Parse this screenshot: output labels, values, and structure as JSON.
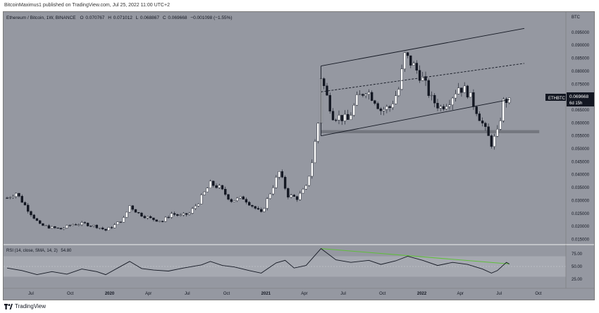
{
  "header": {
    "published": "BitcoinMaximus1 published on TradingView.com, Jul 25, 2022 11:00 UTC+2"
  },
  "legend": {
    "symbol": "Ethereum / Bitcoin, 1W, BINANCE",
    "o_label": "O",
    "o_value": "0.070767",
    "h_label": "H",
    "h_value": "0.071012",
    "l_label": "L",
    "l_value": "0.068867",
    "c_label": "C",
    "c_value": "0.069668",
    "change": "−0.001098 (−1.55%)"
  },
  "price_axis": {
    "currency": "BTC",
    "ticks": [
      "0.095000",
      "0.090000",
      "0.085000",
      "0.080000",
      "0.075000",
      "0.070000",
      "0.065000",
      "0.060000",
      "0.055000",
      "0.050000",
      "0.045000",
      "0.040000",
      "0.035000",
      "0.030000",
      "0.025000",
      "0.020000",
      "0.015000"
    ],
    "ticker_label": "ETHBTC",
    "ticker_value": "0.069668",
    "ticker_countdown": "6d 15h"
  },
  "rsi": {
    "label": "RSI (14, close, SMA, 14, 2)",
    "value": "54.80",
    "ticks": [
      "75.00",
      "50.00",
      "25.00"
    ]
  },
  "time_axis": {
    "labels": [
      "Jul",
      "Oct",
      "2020",
      "Apr",
      "Jul",
      "Oct",
      "2021",
      "Apr",
      "Jul",
      "Oct",
      "2022",
      "Apr",
      "Jul",
      "Oct"
    ]
  },
  "footer": {
    "brand": "TradingView"
  },
  "colors": {
    "background": "#9598a1",
    "bull": "#ffffff",
    "bear": "#131722",
    "support_zone": "#6f7179",
    "rsi_trend": "#5fbf3a"
  },
  "chart_data": {
    "type": "candlestick",
    "title": "Ethereum / Bitcoin, 1W, BINANCE",
    "y_unit": "BTC",
    "ylim": [
      0.0135,
      0.0985
    ],
    "x_range": [
      "2019-05",
      "2022-12"
    ],
    "close_path": [
      [
        "2019-05-06",
        0.031
      ],
      [
        "2019-05-27",
        0.033
      ],
      [
        "2019-06-24",
        0.0265
      ],
      [
        "2019-07-22",
        0.0205
      ],
      [
        "2019-08-19",
        0.0195
      ],
      [
        "2019-09-09",
        0.019
      ],
      [
        "2019-10-07",
        0.0208
      ],
      [
        "2019-11-04",
        0.021
      ],
      [
        "2019-12-02",
        0.02
      ],
      [
        "2019-12-23",
        0.0185
      ],
      [
        "2020-01-13",
        0.0205
      ],
      [
        "2020-02-03",
        0.023
      ],
      [
        "2020-02-17",
        0.028
      ],
      [
        "2020-03-09",
        0.025
      ],
      [
        "2020-04-06",
        0.023
      ],
      [
        "2020-05-04",
        0.022
      ],
      [
        "2020-05-25",
        0.025
      ],
      [
        "2020-06-15",
        0.024
      ],
      [
        "2020-07-06",
        0.025
      ],
      [
        "2020-07-27",
        0.0295
      ],
      [
        "2020-08-24",
        0.0365
      ],
      [
        "2020-09-14",
        0.035
      ],
      [
        "2020-10-12",
        0.03
      ],
      [
        "2020-11-09",
        0.031
      ],
      [
        "2020-11-30",
        0.028
      ],
      [
        "2020-12-21",
        0.025
      ],
      [
        "2021-01-11",
        0.033
      ],
      [
        "2021-02-01",
        0.041
      ],
      [
        "2021-02-22",
        0.032
      ],
      [
        "2021-03-15",
        0.031
      ],
      [
        "2021-04-05",
        0.035
      ],
      [
        "2021-04-19",
        0.045
      ],
      [
        "2021-05-03",
        0.06
      ],
      [
        "2021-05-10",
        0.078
      ],
      [
        "2021-05-24",
        0.07
      ],
      [
        "2021-06-07",
        0.063
      ],
      [
        "2021-06-28",
        0.062
      ],
      [
        "2021-07-12",
        0.061
      ],
      [
        "2021-08-02",
        0.069
      ],
      [
        "2021-08-23",
        0.073
      ],
      [
        "2021-09-13",
        0.069
      ],
      [
        "2021-09-27",
        0.065
      ],
      [
        "2021-10-18",
        0.066
      ],
      [
        "2021-11-08",
        0.073
      ],
      [
        "2021-11-22",
        0.086
      ],
      [
        "2021-12-13",
        0.082
      ],
      [
        "2022-01-03",
        0.077
      ],
      [
        "2022-01-24",
        0.069
      ],
      [
        "2022-02-14",
        0.066
      ],
      [
        "2022-03-07",
        0.069
      ],
      [
        "2022-03-28",
        0.074
      ],
      [
        "2022-04-18",
        0.072
      ],
      [
        "2022-05-09",
        0.065
      ],
      [
        "2022-05-30",
        0.057
      ],
      [
        "2022-06-13",
        0.052
      ],
      [
        "2022-06-27",
        0.056
      ],
      [
        "2022-07-11",
        0.068
      ],
      [
        "2022-07-25",
        0.069668
      ]
    ],
    "channel": {
      "upper": [
        [
          "2021-05-10",
          0.082
        ],
        [
          "2022-08-29",
          0.0965
        ]
      ],
      "middle_dashed": [
        [
          "2021-05-10",
          0.072
        ],
        [
          "2022-08-29",
          0.083
        ]
      ],
      "lower": [
        [
          "2021-05-10",
          0.055
        ],
        [
          "2022-07-25",
          0.069
        ]
      ]
    },
    "support_zone": {
      "from": "2021-05-10",
      "to": "2022-10-03",
      "low": 0.056,
      "high": 0.0572
    },
    "rsi_ylim": [
      10,
      90
    ],
    "rsi_upper_band": 70,
    "rsi_lower_band": 30,
    "rsi_mid": 50,
    "rsi_path": [
      [
        "2019-05-06",
        47
      ],
      [
        "2019-06-10",
        42
      ],
      [
        "2019-07-15",
        34
      ],
      [
        "2019-08-19",
        40
      ],
      [
        "2019-09-23",
        35
      ],
      [
        "2019-10-28",
        45
      ],
      [
        "2019-12-02",
        40
      ],
      [
        "2019-12-23",
        34
      ],
      [
        "2020-01-20",
        47
      ],
      [
        "2020-02-17",
        60
      ],
      [
        "2020-03-16",
        46
      ],
      [
        "2020-04-13",
        43
      ],
      [
        "2020-05-18",
        41
      ],
      [
        "2020-06-22",
        47
      ],
      [
        "2020-08-03",
        53
      ],
      [
        "2020-08-24",
        60
      ],
      [
        "2020-09-21",
        52
      ],
      [
        "2020-10-19",
        49
      ],
      [
        "2020-11-23",
        42
      ],
      [
        "2020-12-21",
        37
      ],
      [
        "2021-01-25",
        57
      ],
      [
        "2021-02-15",
        62
      ],
      [
        "2021-03-08",
        47
      ],
      [
        "2021-04-05",
        52
      ],
      [
        "2021-05-10",
        85
      ],
      [
        "2021-06-14",
        63
      ],
      [
        "2021-07-19",
        58
      ],
      [
        "2021-08-30",
        62
      ],
      [
        "2021-09-27",
        54
      ],
      [
        "2021-11-01",
        61
      ],
      [
        "2021-11-29",
        70
      ],
      [
        "2022-01-03",
        62
      ],
      [
        "2022-02-07",
        52
      ],
      [
        "2022-03-14",
        58
      ],
      [
        "2022-04-18",
        54
      ],
      [
        "2022-05-23",
        45
      ],
      [
        "2022-06-13",
        37
      ],
      [
        "2022-06-27",
        42
      ],
      [
        "2022-07-18",
        58
      ],
      [
        "2022-07-25",
        54.8
      ]
    ],
    "rsi_trendline": [
      [
        "2021-05-10",
        85
      ],
      [
        "2022-07-25",
        55
      ]
    ]
  }
}
